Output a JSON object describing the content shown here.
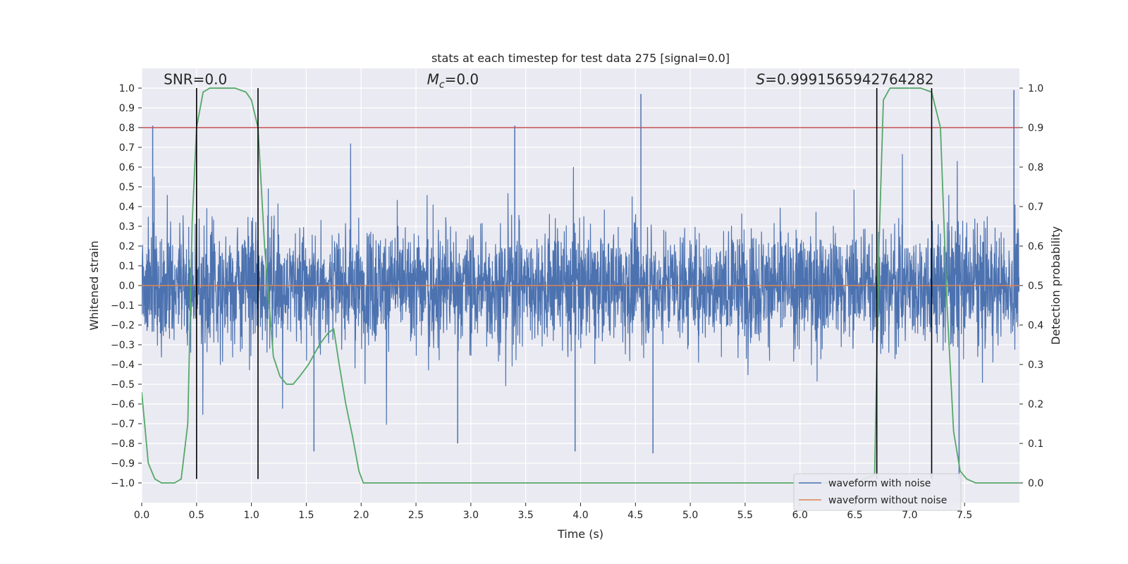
{
  "chart_data": {
    "type": "line",
    "title": "stats at each timestep for test data 275 [signal=0.0]",
    "xlabel": "Time (s)",
    "ylabel": "Whitened strain",
    "y2label": "Detection probability",
    "xlim": [
      0.0,
      8.0
    ],
    "ylim": [
      -1.1,
      1.1
    ],
    "y2lim": [
      -0.05,
      1.05
    ],
    "xticks": [
      0.0,
      0.5,
      1.0,
      1.5,
      2.0,
      2.5,
      3.0,
      3.5,
      4.0,
      4.5,
      5.0,
      5.5,
      6.0,
      6.5,
      7.0,
      7.5
    ],
    "xtick_labels": [
      "0.0",
      "0.5",
      "1.0",
      "1.5",
      "2.0",
      "2.5",
      "3.0",
      "3.5",
      "4.0",
      "4.5",
      "5.0",
      "5.5",
      "6.0",
      "6.5",
      "7.0",
      "7.5"
    ],
    "yticks": [
      -1.0,
      -0.9,
      -0.8,
      -0.7,
      -0.6,
      -0.5,
      -0.4,
      -0.3,
      -0.2,
      -0.1,
      0.0,
      0.1,
      0.2,
      0.3,
      0.4,
      0.5,
      0.6,
      0.7,
      0.8,
      0.9,
      1.0
    ],
    "ytick_labels": [
      "−1.0",
      "−0.9",
      "−0.8",
      "−0.7",
      "−0.6",
      "−0.5",
      "−0.4",
      "−0.3",
      "−0.2",
      "−0.1",
      "0.0",
      "0.1",
      "0.2",
      "0.3",
      "0.4",
      "0.5",
      "0.6",
      "0.7",
      "0.8",
      "0.9",
      "1.0"
    ],
    "y2ticks": [
      0.0,
      0.1,
      0.2,
      0.3,
      0.4,
      0.5,
      0.6,
      0.7,
      0.8,
      0.9,
      1.0
    ],
    "y2tick_labels": [
      "0.0",
      "0.1",
      "0.2",
      "0.3",
      "0.4",
      "0.5",
      "0.6",
      "0.7",
      "0.8",
      "0.9",
      "1.0"
    ],
    "annotations": [
      {
        "text": "SNR=0.0",
        "x": 0.2,
        "y": 1.02
      },
      {
        "text": "M",
        "sub": "c",
        "suffix": "=0.0",
        "x": 2.6,
        "y": 1.02
      },
      {
        "text": "S",
        "suffix": "=0.9991565942764282",
        "x": 5.6,
        "y": 1.02
      }
    ],
    "threshold_line": {
      "y": 0.9,
      "axis": "y2",
      "color": "#c44e52"
    },
    "vertical_lines": [
      0.5,
      1.06,
      6.7,
      7.2
    ],
    "vertical_line_range": [
      -0.98,
      1.0
    ],
    "series": [
      {
        "name": "waveform with noise",
        "color": "#4c72b0",
        "kind": "noise",
        "seed": 275,
        "amplitude": 0.24,
        "spikes": [
          {
            "x": 0.1,
            "y": 0.81
          },
          {
            "x": 3.4,
            "y": 0.81
          },
          {
            "x": 4.55,
            "y": 0.97
          },
          {
            "x": 7.95,
            "y": 0.99
          },
          {
            "x": 1.57,
            "y": -0.84
          },
          {
            "x": 2.88,
            "y": -0.8
          },
          {
            "x": 3.95,
            "y": -0.84
          },
          {
            "x": 4.66,
            "y": -0.85
          },
          {
            "x": 7.45,
            "y": -0.98
          }
        ]
      },
      {
        "name": "waveform without noise",
        "color": "#dd8452",
        "kind": "constant",
        "value": 0.0
      },
      {
        "name": "detection probability",
        "color": "#55a868",
        "axis": "y2",
        "x": [
          0.0,
          0.06,
          0.12,
          0.18,
          0.24,
          0.3,
          0.36,
          0.42,
          0.46,
          0.5,
          0.56,
          0.62,
          0.7,
          0.85,
          0.95,
          1.0,
          1.06,
          1.12,
          1.2,
          1.26,
          1.32,
          1.38,
          1.44,
          1.52,
          1.62,
          1.7,
          1.75,
          1.8,
          1.86,
          1.92,
          1.98,
          2.02,
          2.5,
          3.0,
          3.5,
          4.0,
          4.5,
          5.0,
          5.5,
          6.0,
          6.5,
          6.68,
          6.72,
          6.76,
          6.82,
          6.9,
          7.0,
          7.1,
          7.2,
          7.28,
          7.34,
          7.4,
          7.46,
          7.52,
          7.6,
          7.7,
          8.0
        ],
        "values": [
          0.23,
          0.05,
          0.01,
          0.0,
          0.0,
          0.0,
          0.01,
          0.15,
          0.66,
          0.9,
          0.99,
          1.0,
          1.0,
          1.0,
          0.99,
          0.97,
          0.9,
          0.6,
          0.32,
          0.27,
          0.25,
          0.25,
          0.27,
          0.3,
          0.35,
          0.38,
          0.39,
          0.3,
          0.2,
          0.12,
          0.03,
          0.0,
          0.0,
          0.0,
          0.0,
          0.0,
          0.0,
          0.0,
          0.0,
          0.0,
          0.0,
          0.02,
          0.6,
          0.97,
          1.0,
          1.0,
          1.0,
          1.0,
          0.99,
          0.9,
          0.45,
          0.13,
          0.03,
          0.01,
          0.0,
          0.0,
          0.0
        ]
      }
    ],
    "legend": {
      "position": "bottom-right",
      "entries": [
        {
          "label": "waveform with noise",
          "color": "#4c72b0"
        },
        {
          "label": "waveform without noise",
          "color": "#dd8452"
        }
      ]
    },
    "grid": true
  }
}
